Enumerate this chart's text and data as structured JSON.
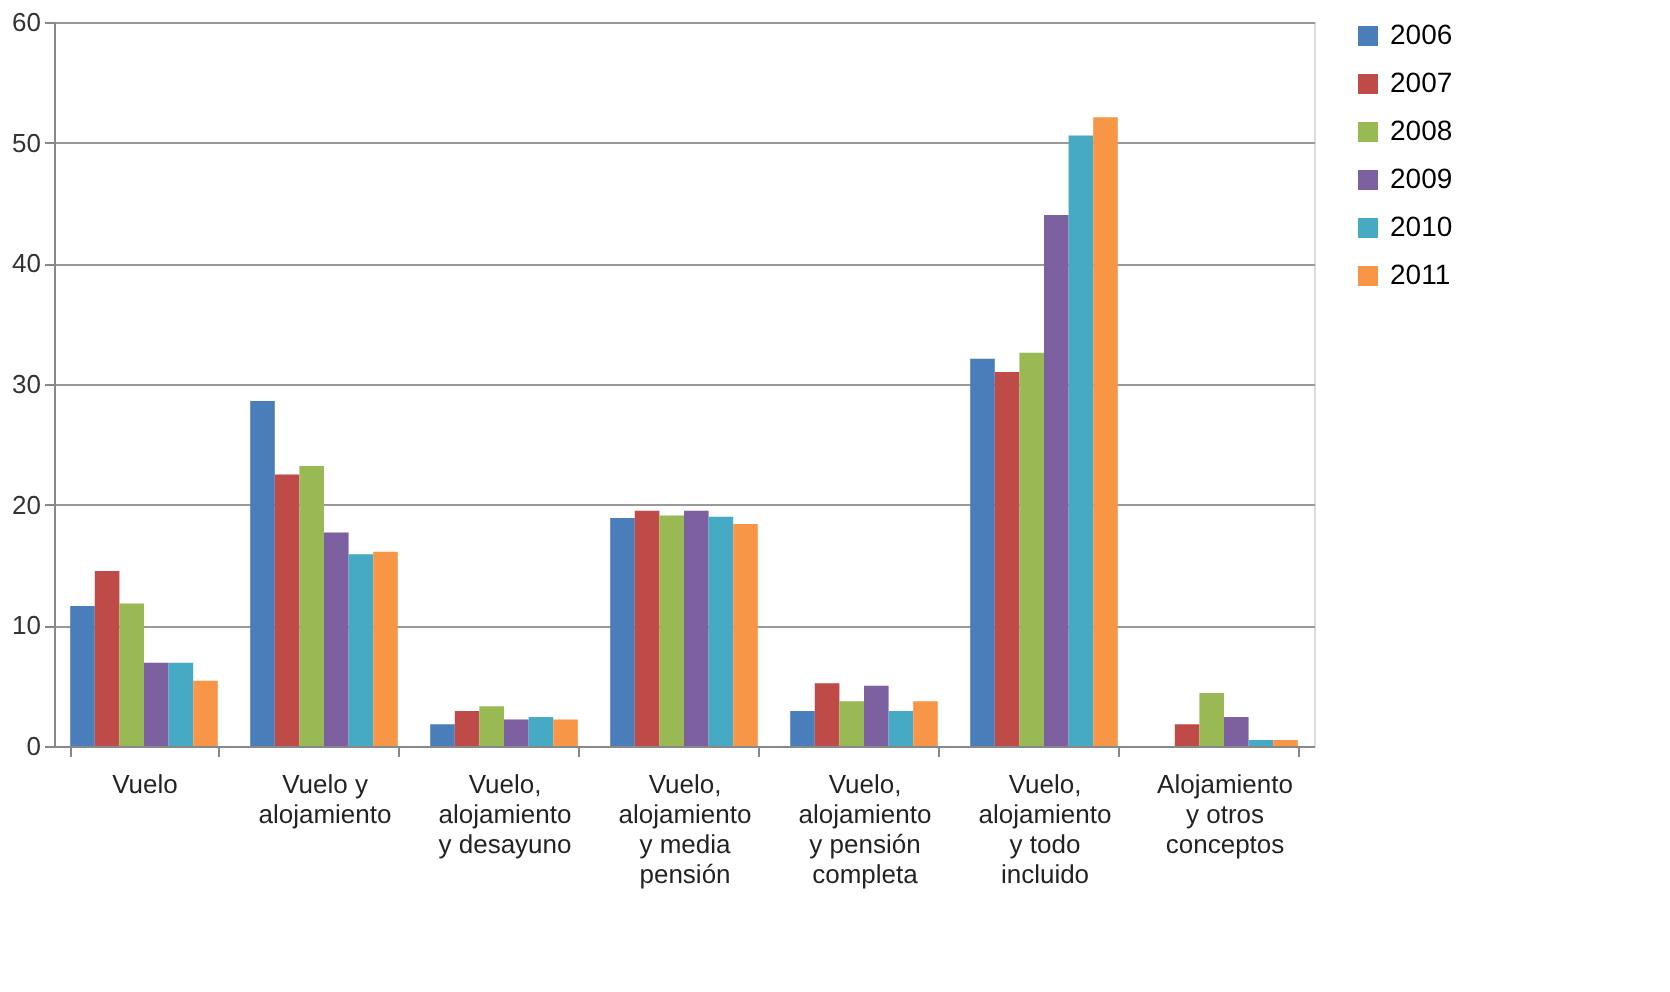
{
  "chart_data": {
    "type": "bar",
    "categories": [
      "Vuelo",
      "Vuelo y alojamiento",
      "Vuelo, alojamiento y desayuno",
      "Vuelo, alojamiento y media pensión",
      "Vuelo, alojamiento y pensión completa",
      "Vuelo, alojamiento y todo incluido",
      "Alojamiento y otros conceptos"
    ],
    "series": [
      {
        "name": "2006",
        "color": "#4a7ebb",
        "values": [
          11.6,
          28.6,
          1.8,
          18.9,
          2.9,
          32.1,
          0
        ]
      },
      {
        "name": "2007",
        "color": "#be4b48",
        "values": [
          14.5,
          22.5,
          2.9,
          19.5,
          5.2,
          31.0,
          1.8
        ]
      },
      {
        "name": "2008",
        "color": "#98b954",
        "values": [
          11.8,
          23.2,
          3.3,
          19.1,
          3.7,
          32.6,
          4.4
        ]
      },
      {
        "name": "2009",
        "color": "#7d60a0",
        "values": [
          6.9,
          17.7,
          2.2,
          19.5,
          5.0,
          44.0,
          2.4
        ]
      },
      {
        "name": "2010",
        "color": "#46aac5",
        "values": [
          6.9,
          15.9,
          2.4,
          19.0,
          2.9,
          50.6,
          0.5
        ]
      },
      {
        "name": "2011",
        "color": "#f79646",
        "values": [
          5.4,
          16.1,
          2.2,
          18.4,
          3.7,
          52.1,
          0.5
        ]
      }
    ],
    "ylim": [
      0,
      60
    ],
    "yticks": [
      0,
      10,
      20,
      30,
      40,
      50,
      60
    ],
    "grid": "y",
    "legend": "right"
  }
}
